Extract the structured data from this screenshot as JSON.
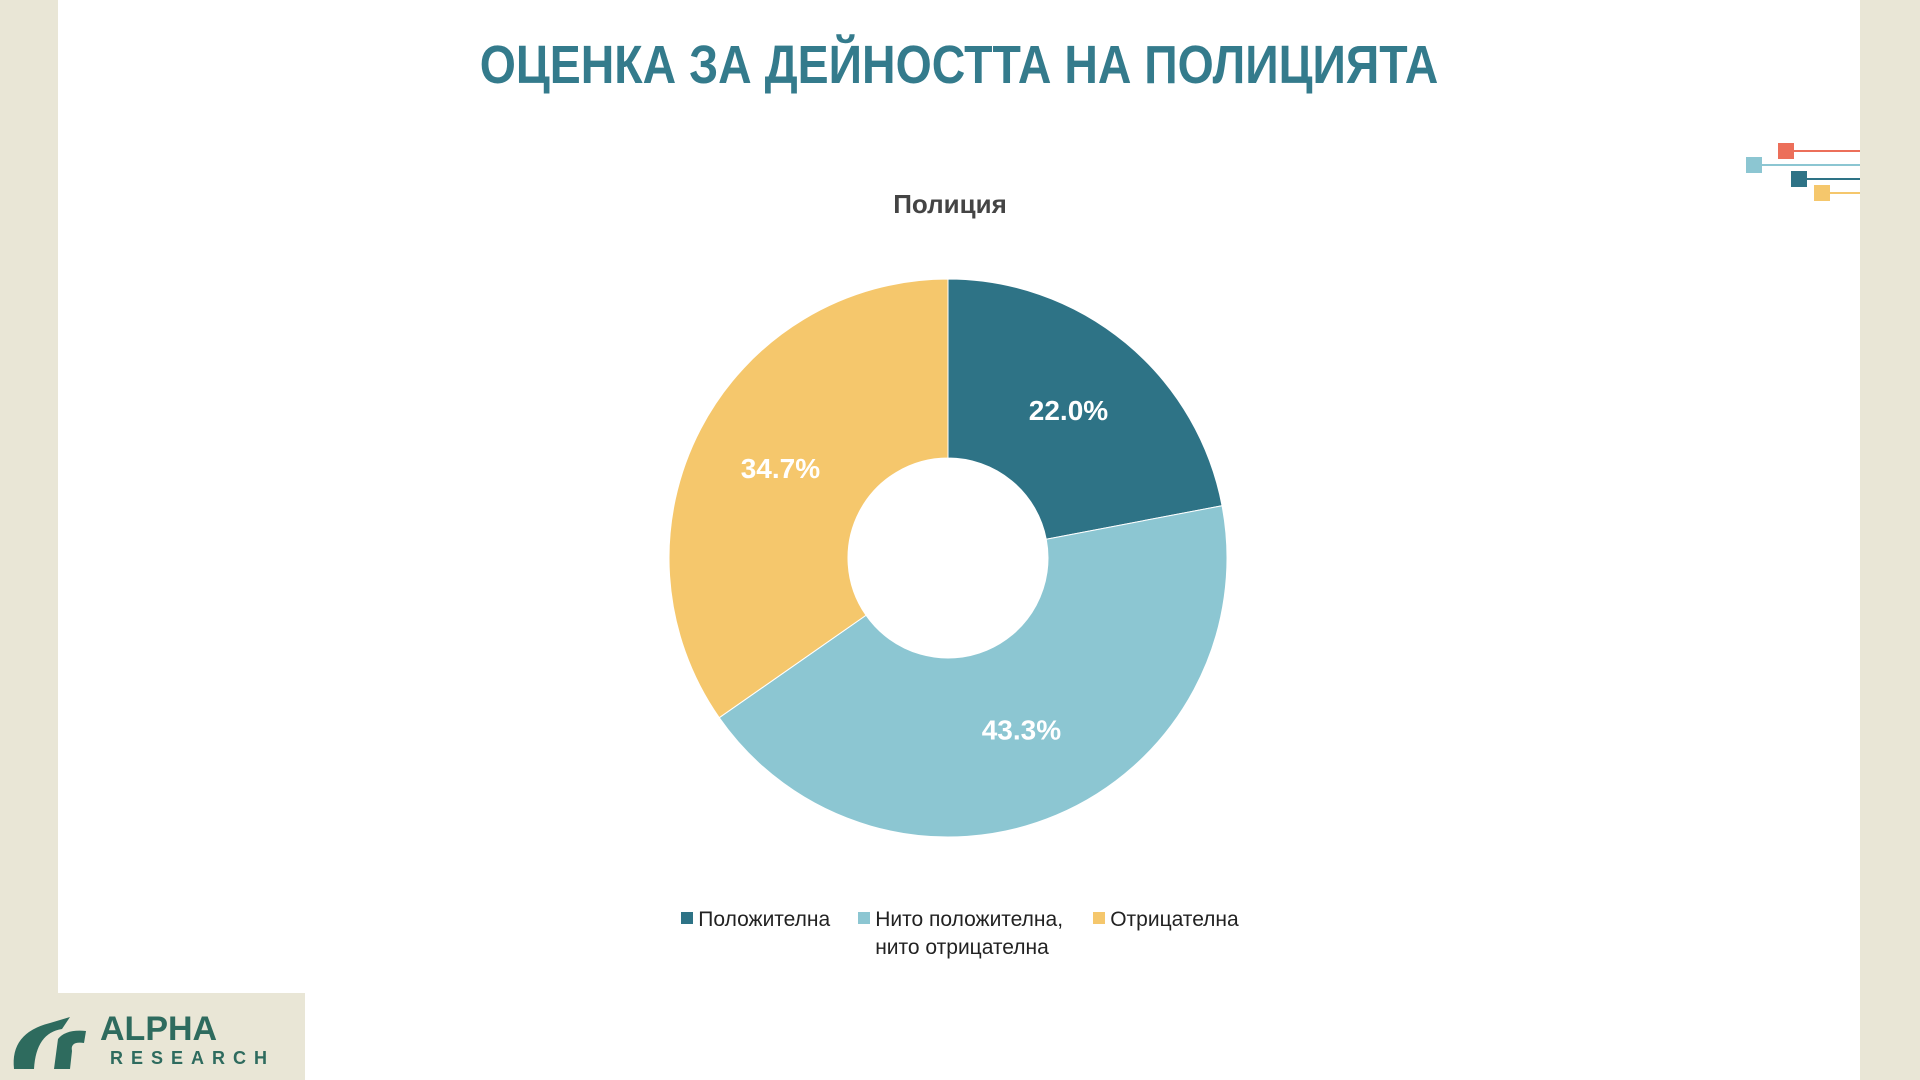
{
  "slide": {
    "title": "ОЦЕНКА ЗА ДЕЙНОСТТА НА ПОЛИЦИЯТА"
  },
  "chart_data": {
    "type": "donut",
    "title": "Полиция",
    "categories": [
      "Положителна",
      "Нито положителна, нито отрицателна",
      "Отрицателна"
    ],
    "values": [
      22.0,
      43.3,
      34.7
    ],
    "value_labels": [
      "22.0%",
      "43.3%",
      "34.7%"
    ],
    "colors": [
      "#2e7386",
      "#8cc6d2",
      "#f5c76c"
    ],
    "legend": "bottom"
  },
  "logo": {
    "name": "ALPHA",
    "subtitle": "RESEARCH"
  }
}
